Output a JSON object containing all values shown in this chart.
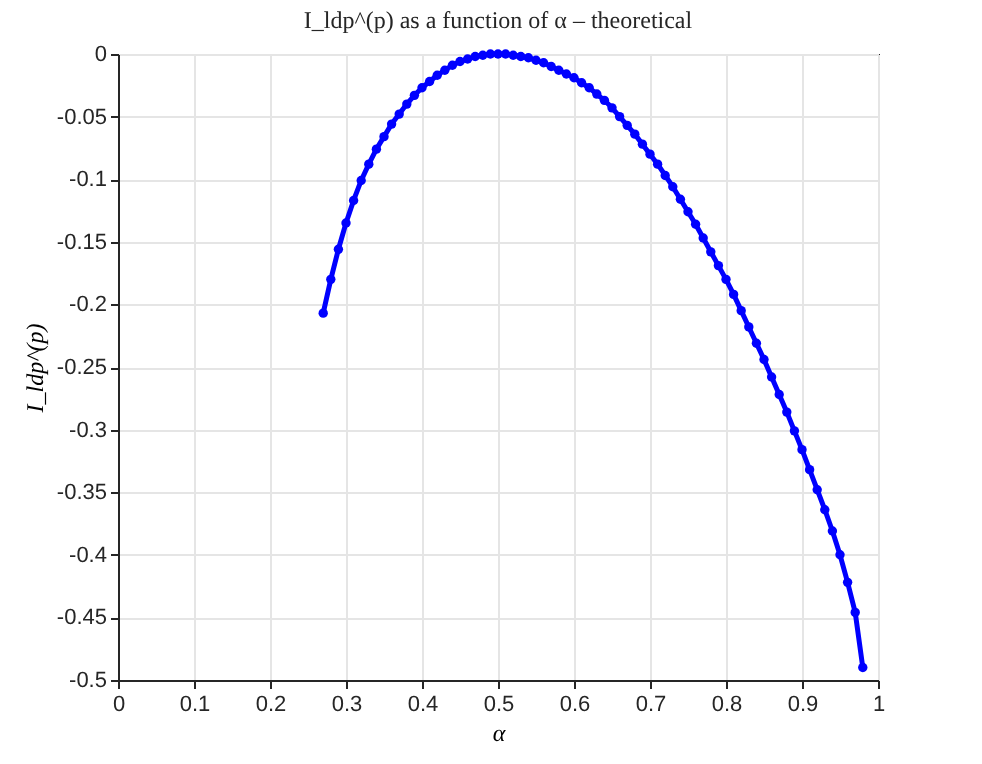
{
  "chart_data": {
    "type": "line",
    "title": "I_ldp^(p) as a function of α – theoretical",
    "xlabel": "α",
    "ylabel": "I_ldp^(p)",
    "x": [
      0.27,
      0.28,
      0.29,
      0.3,
      0.31,
      0.32,
      0.33,
      0.34,
      0.35,
      0.36,
      0.37,
      0.38,
      0.39,
      0.4,
      0.41,
      0.42,
      0.43,
      0.44,
      0.45,
      0.46,
      0.47,
      0.48,
      0.49,
      0.5,
      0.51,
      0.52,
      0.53,
      0.54,
      0.55,
      0.56,
      0.57,
      0.58,
      0.59,
      0.6,
      0.61,
      0.62,
      0.63,
      0.64,
      0.65,
      0.66,
      0.67,
      0.68,
      0.69,
      0.7,
      0.71,
      0.72,
      0.73,
      0.74,
      0.75,
      0.76,
      0.77,
      0.78,
      0.79,
      0.8,
      0.81,
      0.82,
      0.83,
      0.84,
      0.85,
      0.86,
      0.87,
      0.88,
      0.89,
      0.9,
      0.91,
      0.92,
      0.93,
      0.94,
      0.95,
      0.96,
      0.97,
      0.98
    ],
    "series": [
      {
        "color": "#0000ff",
        "values": [
          -0.207,
          -0.18,
          -0.156,
          -0.135,
          -0.117,
          -0.101,
          -0.088,
          -0.076,
          -0.066,
          -0.056,
          -0.048,
          -0.04,
          -0.033,
          -0.027,
          -0.022,
          -0.017,
          -0.013,
          -0.009,
          -0.006,
          -0.004,
          -0.002,
          -0.001,
          0,
          0,
          0,
          -0.001,
          -0.002,
          -0.003,
          -0.005,
          -0.007,
          -0.01,
          -0.013,
          -0.016,
          -0.019,
          -0.023,
          -0.027,
          -0.032,
          -0.037,
          -0.043,
          -0.05,
          -0.057,
          -0.064,
          -0.072,
          -0.08,
          -0.088,
          -0.097,
          -0.106,
          -0.116,
          -0.126,
          -0.136,
          -0.147,
          -0.158,
          -0.169,
          -0.18,
          -0.192,
          -0.205,
          -0.218,
          -0.231,
          -0.244,
          -0.258,
          -0.272,
          -0.286,
          -0.301,
          -0.316,
          -0.332,
          -0.348,
          -0.364,
          -0.381,
          -0.4,
          -0.422,
          -0.446,
          -0.49
        ]
      }
    ],
    "xlim": [
      0,
      1
    ],
    "xticks": [
      0,
      0.1,
      0.2,
      0.3,
      0.4,
      0.5,
      0.6,
      0.7,
      0.8,
      0.9,
      1
    ],
    "ylim": [
      -0.5,
      0
    ],
    "yticks": [
      -0.5,
      -0.45,
      -0.4,
      -0.35,
      -0.3,
      -0.25,
      -0.2,
      -0.15,
      -0.1,
      -0.05,
      0
    ],
    "grid": true,
    "marker": "circle",
    "line_style": "solid"
  }
}
